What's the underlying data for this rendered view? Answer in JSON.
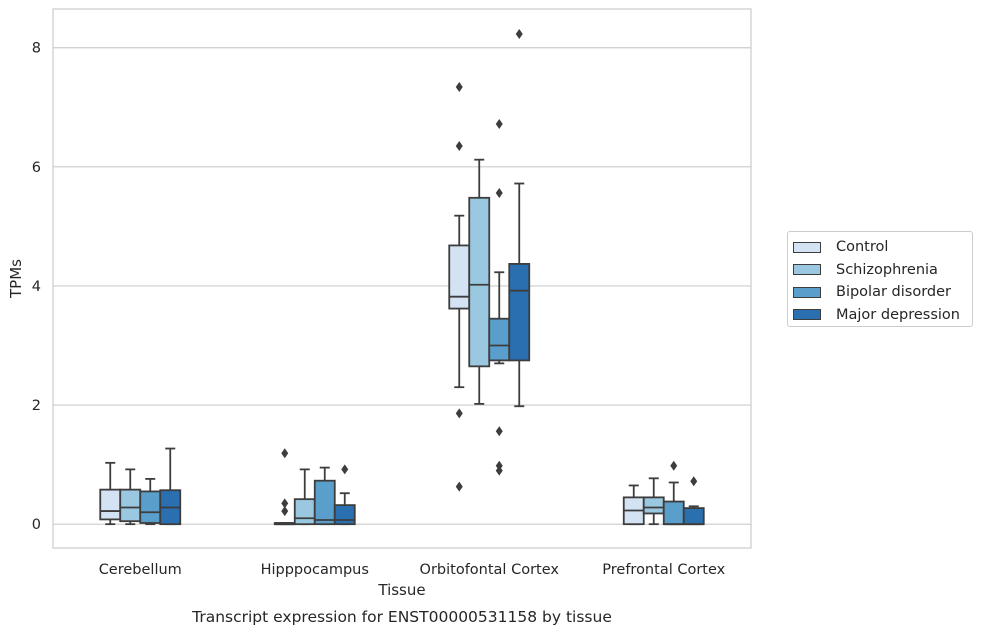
{
  "chart_data": {
    "type": "box",
    "title": "Transcript expression for ENST00000531158 by tissue",
    "xlabel": "Tissue",
    "ylabel": "TPMs",
    "ylim": [
      -0.4,
      8.65
    ],
    "yticks": [
      0,
      2,
      4,
      6,
      8
    ],
    "grid": "horizontal",
    "legend_placement": "right",
    "categories": [
      "Cerebellum",
      "Hipppocampus",
      "Orbitofontal Cortex",
      "Prefrontal Cortex"
    ],
    "series": [
      {
        "name": "Control",
        "color": "#d3e3f3",
        "boxes": [
          {
            "whislo": 0.0,
            "q1": 0.08,
            "med": 0.22,
            "q3": 0.58,
            "whishi": 1.03,
            "fliers": []
          },
          {
            "whislo": 0.0,
            "q1": 0.0,
            "med": 0.0,
            "q3": 0.02,
            "whishi": 0.02,
            "fliers": [
              0.22,
              0.35,
              1.19
            ]
          },
          {
            "whislo": 2.3,
            "q1": 3.62,
            "med": 3.82,
            "q3": 4.68,
            "whishi": 5.18,
            "fliers": [
              0.63,
              1.86,
              6.35,
              7.34
            ]
          },
          {
            "whislo": 0.0,
            "q1": 0.0,
            "med": 0.23,
            "q3": 0.45,
            "whishi": 0.65,
            "fliers": []
          }
        ]
      },
      {
        "name": "Schizophrenia",
        "color": "#9ac8e0",
        "boxes": [
          {
            "whislo": 0.0,
            "q1": 0.05,
            "med": 0.28,
            "q3": 0.58,
            "whishi": 0.92,
            "fliers": []
          },
          {
            "whislo": 0.0,
            "q1": 0.0,
            "med": 0.1,
            "q3": 0.42,
            "whishi": 0.92,
            "fliers": []
          },
          {
            "whislo": 2.02,
            "q1": 2.65,
            "med": 4.02,
            "q3": 5.48,
            "whishi": 6.12,
            "fliers": []
          },
          {
            "whislo": 0.0,
            "q1": 0.18,
            "med": 0.28,
            "q3": 0.45,
            "whishi": 0.77,
            "fliers": []
          }
        ]
      },
      {
        "name": "Bipolar disorder",
        "color": "#5a9ecc",
        "boxes": [
          {
            "whislo": 0.0,
            "q1": 0.02,
            "med": 0.2,
            "q3": 0.55,
            "whishi": 0.76,
            "fliers": []
          },
          {
            "whislo": 0.0,
            "q1": 0.0,
            "med": 0.07,
            "q3": 0.73,
            "whishi": 0.95,
            "fliers": []
          },
          {
            "whislo": 2.7,
            "q1": 2.75,
            "med": 3.0,
            "q3": 3.45,
            "whishi": 4.23,
            "fliers": [
              0.9,
              0.98,
              1.56,
              5.56,
              6.72
            ]
          },
          {
            "whislo": 0.0,
            "q1": 0.0,
            "med": 0.0,
            "q3": 0.38,
            "whishi": 0.7,
            "fliers": [
              0.98
            ]
          }
        ]
      },
      {
        "name": "Major depression",
        "color": "#2a6fb0",
        "boxes": [
          {
            "whislo": 0.0,
            "q1": 0.0,
            "med": 0.28,
            "q3": 0.57,
            "whishi": 1.27,
            "fliers": []
          },
          {
            "whislo": 0.0,
            "q1": 0.0,
            "med": 0.07,
            "q3": 0.32,
            "whishi": 0.52,
            "fliers": [
              0.92
            ]
          },
          {
            "whislo": 1.98,
            "q1": 2.75,
            "med": 3.92,
            "q3": 4.37,
            "whishi": 5.72,
            "fliers": [
              8.23
            ]
          },
          {
            "whislo": 0.0,
            "q1": 0.0,
            "med": 0.0,
            "q3": 0.27,
            "whishi": 0.3,
            "fliers": [
              0.72
            ]
          }
        ]
      }
    ]
  }
}
